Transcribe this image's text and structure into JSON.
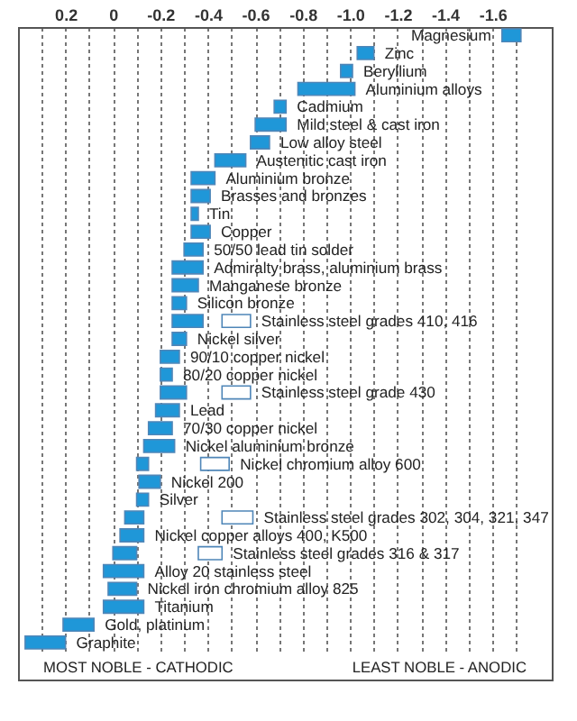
{
  "chart_data": {
    "type": "bar",
    "orientation": "horizontal",
    "categories": [
      "Magnesium",
      "Zinc",
      "Beryllium",
      "Aluminium  alloys",
      "Cadmium",
      "Mild steel & cast iron",
      "Low alloy steel",
      "Austenitic cast iron",
      "Aluminium  bronze",
      "Brasses and bronzes",
      "Tin",
      "Copper",
      "50/50 lead tin solder",
      "Admiralty brass, aluminium brass",
      "Manganese bronze",
      "Silicon bronze",
      "Stainless steel grades 410, 416",
      "Nickel silver",
      "90/10 copper nickel",
      "80/20 copper nickel",
      "Stainless steel grade 430",
      "Lead",
      "70/30 copper nickel",
      "Nickel aluminium bronze",
      "Nickel chromium  alloy 600",
      "Nickel 200",
      "Silver",
      "Stainless steel grades 302, 304, 321, 347",
      "Nickel copper alloys 400, K500",
      "Stainless steel grades 316 & 317",
      "Alloy 20 stainless steel",
      "Nickel iron chromium  alloy 825",
      "Titanium",
      "Gold, platinum",
      "Graphite"
    ],
    "series": [
      {
        "color": "#1f97d8",
        "base": [
          -1.64,
          -1.03,
          -0.96,
          -0.78,
          -0.68,
          -0.6,
          -0.58,
          -0.43,
          -0.33,
          -0.33,
          -0.33,
          -0.33,
          -0.3,
          -0.25,
          -0.25,
          -0.25,
          -0.25,
          -0.25,
          -0.2,
          -0.2,
          -0.2,
          -0.18,
          -0.15,
          -0.13,
          -0.1,
          -0.11,
          -0.1,
          -0.05,
          -0.03,
          0,
          0.04,
          0.02,
          0.04,
          0.21,
          0.37
        ],
        "values": [
          -0.08,
          -0.07,
          -0.05,
          -0.24,
          -0.05,
          -0.13,
          -0.08,
          -0.13,
          -0.1,
          -0.08,
          -0.03,
          -0.08,
          -0.08,
          -0.13,
          -0.11,
          -0.06,
          -0.13,
          -0.06,
          -0.08,
          -0.05,
          -0.11,
          -0.1,
          -0.1,
          -0.13,
          -0.05,
          -0.09,
          -0.05,
          -0.08,
          -0.1,
          -0.1,
          -0.17,
          -0.12,
          -0.17,
          -0.13,
          -0.17
        ]
      },
      {
        "color": "#ffffff",
        "base": [
          null,
          null,
          null,
          null,
          null,
          null,
          null,
          null,
          null,
          null,
          null,
          null,
          null,
          null,
          null,
          null,
          -0.46,
          null,
          null,
          null,
          -0.46,
          null,
          null,
          null,
          -0.37,
          null,
          null,
          -0.46,
          null,
          -0.36,
          null,
          null,
          null,
          null,
          null
        ],
        "values": [
          null,
          null,
          null,
          null,
          null,
          null,
          null,
          null,
          null,
          null,
          null,
          null,
          null,
          null,
          null,
          null,
          -0.12,
          null,
          null,
          null,
          -0.12,
          null,
          null,
          null,
          -0.12,
          null,
          null,
          -0.13,
          null,
          -0.1,
          null,
          null,
          null,
          null,
          null
        ]
      }
    ],
    "xlim": [
      0.4,
      -1.85
    ],
    "xticks": [
      {
        "value": 0.3,
        "label": null
      },
      0.2,
      {
        "value": 0.1,
        "label": null
      },
      0,
      {
        "value": -0.1,
        "label": null
      },
      -0.2,
      {
        "value": -0.3,
        "label": null
      },
      -0.4,
      {
        "value": -0.5,
        "label": null
      },
      -0.6,
      {
        "value": -0.7,
        "label": null
      },
      -0.8,
      {
        "value": -0.9,
        "label": null
      },
      {
        "value": -1,
        "label": "-1.0"
      },
      {
        "value": -1.1,
        "label": null
      },
      -1.2,
      {
        "value": -1.3,
        "label": null
      },
      -1.4,
      {
        "value": -1.5,
        "label": null
      },
      -1.6,
      {
        "value": -1.7,
        "label": null
      }
    ],
    "grid": "x",
    "annotations": [
      "MOST NOBLE - CATHODIC",
      "LEAST NOBLE - ANODIC"
    ]
  }
}
